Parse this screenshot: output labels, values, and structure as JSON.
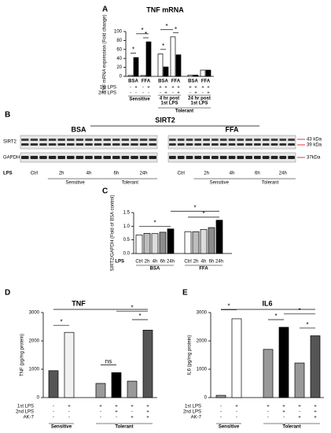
{
  "panel_labels": [
    "A",
    "B",
    "C",
    "D",
    "E"
  ],
  "chart_data": [
    {
      "type": "bar",
      "title": "TNF mRNA",
      "y_label": "TNF mRNA expression (Fold change)",
      "values": [
        2,
        42,
        2,
        77,
        50,
        21,
        88,
        48,
        3,
        3,
        14,
        14
      ],
      "colors": [
        "#ffffff",
        "#000000",
        "#ffffff",
        "#000000",
        "#ffffff",
        "#000000",
        "#ffffff",
        "#000000",
        "#ffffff",
        "#000000",
        "#ffffff",
        "#000000"
      ],
      "ylim": [
        0,
        100
      ],
      "yticks": [
        0,
        20,
        40,
        60,
        80,
        100
      ],
      "condition_rows": [
        {
          "label": "1st LPS",
          "marks": [
            "-",
            "+",
            "-",
            "+",
            "+",
            "+",
            "+",
            "+",
            "+",
            "+",
            "+",
            "+"
          ]
        },
        {
          "label": "2nd LPS",
          "marks": [
            "-",
            "-",
            "-",
            "-",
            "-",
            "+",
            "-",
            "+",
            "-",
            "+",
            "-",
            "+"
          ]
        }
      ],
      "groups": [
        "BSA",
        "FFA",
        "BSA",
        "FFA",
        "BSA",
        "FFA",
        "Sensitive",
        "4 hr post",
        "1st LPS",
        "24 hr post",
        "1st LPS",
        "Tolerant"
      ],
      "annotations": [
        "*",
        "*",
        "*",
        "*",
        "*",
        "*"
      ]
    },
    {
      "type": "bar",
      "y_label": "SIRT2/GAPDH (Fold of BSA control)",
      "values": [
        0.68,
        0.74,
        0.73,
        0.78,
        0.9,
        0.8,
        0.8,
        0.88,
        0.95,
        1.22
      ],
      "colors": [
        "#ffffff",
        "#bdbdbd",
        "#dcdcdc",
        "#8c8c8c",
        "#000000",
        "#ffffff",
        "#bdbdbd",
        "#dcdcdc",
        "#8c8c8c",
        "#000000"
      ],
      "ylim": [
        0,
        1.5
      ],
      "yticks": [
        {
          "value": 0,
          "label": "0.0"
        },
        0.5,
        {
          "value": 1,
          "label": "1.0"
        },
        1.5
      ],
      "row_label": "LPS",
      "categories": [
        "Ctrl",
        "2h",
        "4h",
        "6h",
        "24h",
        "Ctrl",
        "2h",
        "4h",
        "6h",
        "24h"
      ],
      "groups": [
        "BSA",
        "FFA"
      ],
      "annotations": [
        "*",
        "*",
        "*"
      ]
    },
    {
      "type": "bar",
      "title": "TNF",
      "y_label": "TNF (pg/mg protein)",
      "values": [
        950,
        2300,
        500,
        880,
        580,
        2380
      ],
      "colors": [
        "#555555",
        "#f2f2f2",
        "#999999",
        "#000000",
        "#999999",
        "#555555"
      ],
      "ylim": [
        0,
        3000
      ],
      "yticks": [
        0,
        1000,
        2000,
        3000
      ],
      "condition_rows": [
        {
          "label": "1st LPS",
          "marks": [
            "-",
            "+",
            "+",
            "+",
            "+",
            "+"
          ]
        },
        {
          "label": "2nd LPS",
          "marks": [
            "-",
            "-",
            "-",
            "+",
            "-",
            "+"
          ]
        },
        {
          "label": "AK-7",
          "marks": [
            "-",
            "-",
            "-",
            "-",
            "+",
            "+"
          ]
        }
      ],
      "groups": [
        "Sensitive",
        "Tolerant"
      ],
      "annotations": [
        "*",
        "ns",
        "*",
        "*"
      ]
    },
    {
      "type": "bar",
      "title": "IL6",
      "y_label": "IL6 (pg/mg protein)",
      "values": [
        80,
        2780,
        1700,
        2480,
        1220,
        2180
      ],
      "colors": [
        "#999999",
        "#ffffff",
        "#999999",
        "#000000",
        "#999999",
        "#555555"
      ],
      "ylim": [
        0,
        3000
      ],
      "yticks": [
        0,
        1000,
        2000,
        3000
      ],
      "condition_rows": [
        {
          "label": "1st LPS",
          "marks": [
            "-",
            "+",
            "+",
            "+",
            "+",
            "+"
          ]
        },
        {
          "label": "2nd LPS",
          "marks": [
            "-",
            "-",
            "-",
            "+",
            "-",
            "+"
          ]
        },
        {
          "label": "AK-7",
          "marks": [
            "-",
            "-",
            "-",
            "-",
            "+",
            "+"
          ]
        }
      ],
      "groups": [
        "Sensitive",
        "Tolerant"
      ],
      "annotations": [
        "*",
        "*",
        "*",
        "*"
      ]
    }
  ],
  "blot": {
    "title": "SIRT2",
    "left": "BSA",
    "right": "FFA",
    "rows": [
      "SIRT2",
      "GAPDH"
    ],
    "lane_row_label": "LPS",
    "lanes": [
      "Ctrl",
      "2h",
      "4h",
      "6h",
      "24h"
    ],
    "lane_groups": [
      "Sensitive",
      "Tolerant"
    ],
    "sizes": [
      "43 kDa",
      "39 kDa",
      "37kDa"
    ]
  }
}
